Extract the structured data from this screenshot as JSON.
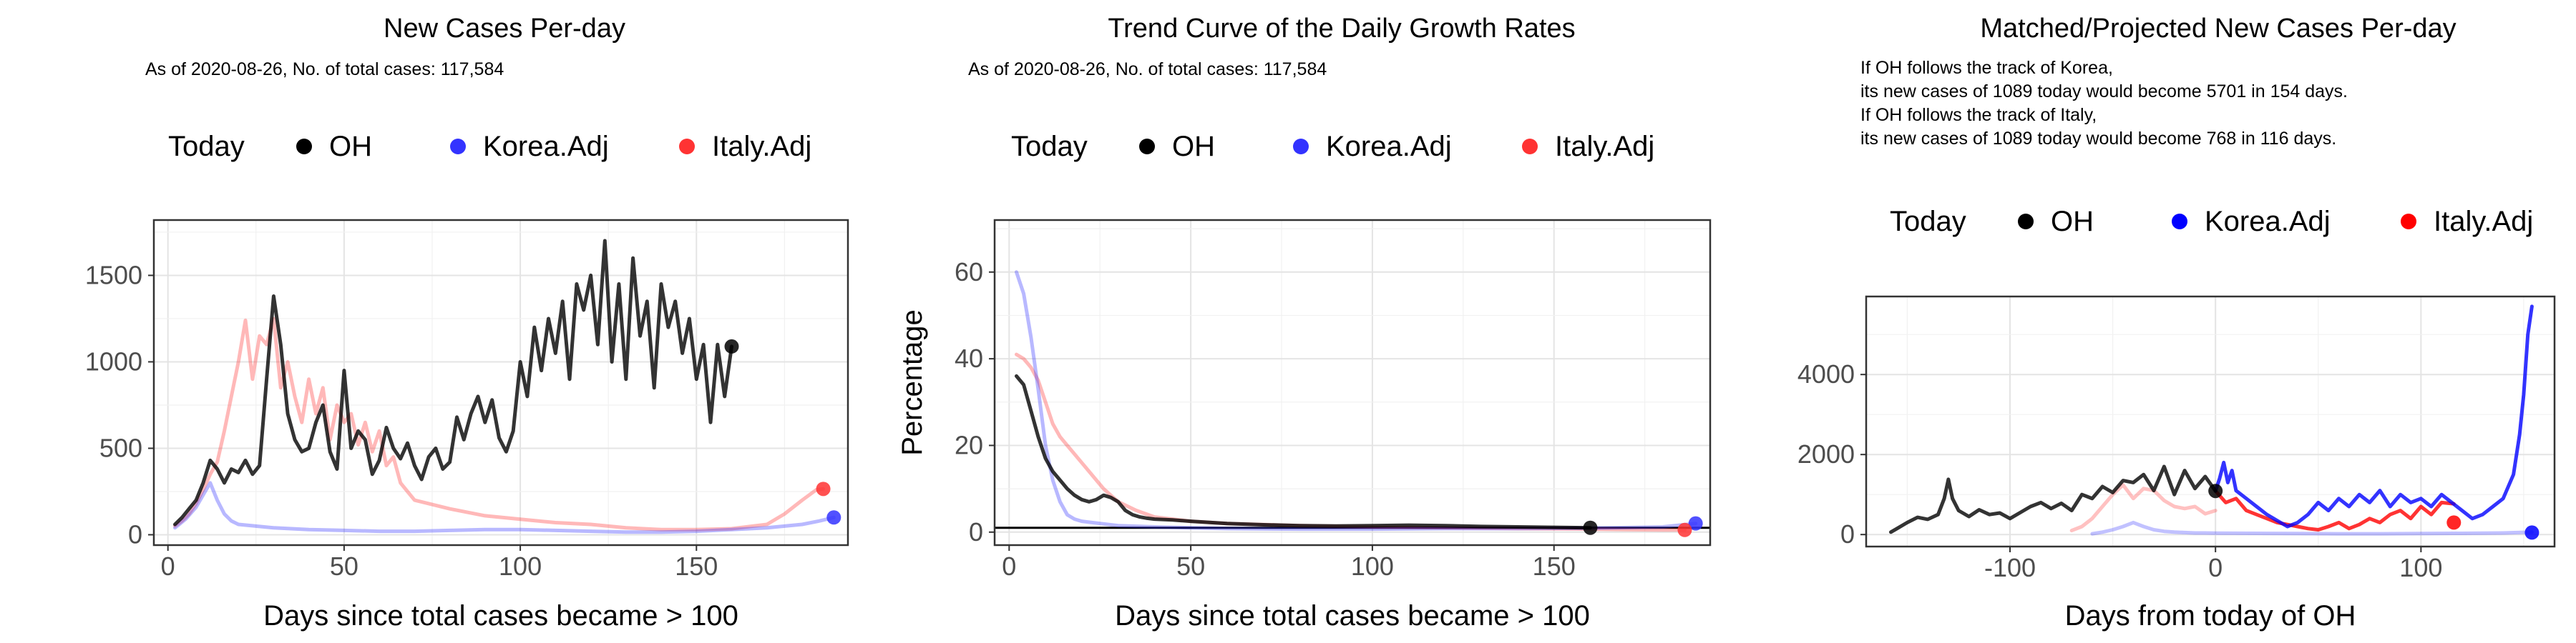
{
  "panels": [
    {
      "title": "New Cases Per-day",
      "subtitle": "As of 2020-08-26, No. of total cases: 117,584",
      "annotations": [],
      "legend": {
        "title": "Today",
        "items": [
          "OH",
          "Korea.Adj",
          "Italy.Adj"
        ],
        "colors": [
          "#000000",
          "#3333ff",
          "#ff3333"
        ]
      },
      "xlabel": "Days since total cases became > 100",
      "ylabel": ""
    },
    {
      "title": "Trend Curve of the Daily Growth Rates",
      "subtitle": "As of 2020-08-26, No. of total cases: 117,584",
      "annotations": [],
      "legend": {
        "title": "Today",
        "items": [
          "OH",
          "Korea.Adj",
          "Italy.Adj"
        ],
        "colors": [
          "#000000",
          "#3333ff",
          "#ff3333"
        ]
      },
      "xlabel": "Days since total cases became > 100",
      "ylabel": "Percentage"
    },
    {
      "title": "Matched/Projected New Cases Per-day",
      "subtitle": "",
      "annotations": [
        "If OH follows the track of Korea,",
        "its new cases of 1089 today would become 5701 in 154 days.",
        "If OH follows the track of Italy,",
        "its new cases of 1089 today would become 768 in 116 days."
      ],
      "legend": {
        "title": "Today",
        "items": [
          "OH",
          "Korea.Adj",
          "Italy.Adj"
        ],
        "colors": [
          "#000000",
          "#0000ff",
          "#ff0000"
        ]
      },
      "xlabel": "Days from today of OH",
      "ylabel": ""
    }
  ],
  "chart_data": [
    {
      "type": "line",
      "title": "New Cases Per-day",
      "xlabel": "Days since total cases became > 100",
      "ylabel": "",
      "xlim": [
        -4,
        193
      ],
      "ylim": [
        -60,
        1820
      ],
      "xticks": [
        0,
        50,
        100,
        150
      ],
      "yticks": [
        0,
        500,
        1000,
        1500
      ],
      "grid": true,
      "legend_position": "top",
      "series": [
        {
          "name": "OH",
          "color": "#000000",
          "alpha": 0.8,
          "x": [
            2,
            4,
            6,
            8,
            10,
            12,
            14,
            16,
            18,
            20,
            22,
            24,
            26,
            28,
            30,
            32,
            34,
            36,
            38,
            40,
            42,
            44,
            46,
            48,
            50,
            52,
            54,
            56,
            58,
            60,
            62,
            64,
            66,
            68,
            70,
            72,
            74,
            76,
            78,
            80,
            82,
            84,
            86,
            88,
            90,
            92,
            94,
            96,
            98,
            100,
            102,
            104,
            106,
            108,
            110,
            112,
            114,
            116,
            118,
            120,
            122,
            124,
            126,
            128,
            130,
            132,
            134,
            136,
            138,
            140,
            142,
            144,
            146,
            148,
            150,
            152,
            154,
            156,
            158,
            160
          ],
          "y": [
            60,
            100,
            150,
            200,
            300,
            430,
            380,
            300,
            380,
            360,
            430,
            350,
            400,
            900,
            1380,
            1100,
            700,
            550,
            480,
            500,
            650,
            750,
            480,
            380,
            950,
            500,
            600,
            550,
            350,
            430,
            620,
            500,
            440,
            530,
            400,
            320,
            450,
            500,
            380,
            420,
            680,
            550,
            700,
            800,
            650,
            780,
            560,
            480,
            600,
            1000,
            800,
            1200,
            950,
            1250,
            1050,
            1350,
            900,
            1450,
            1300,
            1500,
            1100,
            1700,
            1000,
            1450,
            900,
            1600,
            1150,
            1350,
            850,
            1450,
            1200,
            1350,
            1050,
            1250,
            900,
            1100,
            650,
            1100,
            800,
            1089
          ]
        },
        {
          "name": "Korea.Adj",
          "color": "#3333ff",
          "alpha": 0.35,
          "x": [
            2,
            5,
            8,
            10,
            12,
            14,
            16,
            18,
            20,
            25,
            30,
            40,
            50,
            60,
            70,
            80,
            90,
            100,
            110,
            120,
            130,
            140,
            150,
            160,
            170,
            175,
            180,
            185,
            189
          ],
          "y": [
            40,
            90,
            160,
            230,
            300,
            200,
            120,
            80,
            60,
            50,
            40,
            30,
            25,
            20,
            20,
            25,
            30,
            30,
            25,
            20,
            15,
            15,
            20,
            30,
            40,
            50,
            60,
            80,
            100
          ]
        },
        {
          "name": "Italy.Adj",
          "color": "#ff3333",
          "alpha": 0.35,
          "x": [
            2,
            4,
            6,
            8,
            10,
            12,
            14,
            16,
            18,
            20,
            22,
            24,
            26,
            28,
            30,
            32,
            34,
            36,
            38,
            40,
            42,
            44,
            46,
            48,
            50,
            52,
            54,
            56,
            58,
            60,
            62,
            64,
            66,
            68,
            70,
            80,
            90,
            100,
            110,
            120,
            130,
            140,
            150,
            160,
            170,
            175,
            180,
            184,
            186
          ],
          "y": [
            50,
            80,
            120,
            180,
            260,
            350,
            420,
            600,
            800,
            1000,
            1240,
            900,
            1150,
            1100,
            1250,
            850,
            1000,
            800,
            650,
            900,
            700,
            850,
            550,
            750,
            650,
            700,
            520,
            650,
            480,
            600,
            400,
            450,
            300,
            250,
            200,
            150,
            110,
            90,
            70,
            60,
            40,
            30,
            30,
            35,
            60,
            120,
            200,
            260,
            265
          ]
        }
      ],
      "today_points": [
        {
          "name": "OH",
          "x": 160,
          "y": 1089,
          "color": "#000000"
        },
        {
          "name": "Korea.Adj",
          "x": 189,
          "y": 100,
          "color": "#3333ff"
        },
        {
          "name": "Italy.Adj",
          "x": 186,
          "y": 265,
          "color": "#ff3333"
        }
      ]
    },
    {
      "type": "line",
      "title": "Trend Curve of the Daily Growth Rates",
      "xlabel": "Days since total cases became > 100",
      "ylabel": "Percentage",
      "xlim": [
        -4,
        193
      ],
      "ylim": [
        -3,
        72
      ],
      "xticks": [
        0,
        50,
        100,
        150
      ],
      "yticks": [
        0,
        20,
        40,
        60
      ],
      "hline": 1,
      "grid": true,
      "legend_position": "top",
      "series": [
        {
          "name": "OH",
          "color": "#000000",
          "alpha": 0.8,
          "x": [
            2,
            4,
            6,
            8,
            10,
            12,
            14,
            16,
            18,
            20,
            22,
            24,
            26,
            28,
            30,
            32,
            34,
            36,
            38,
            40,
            45,
            50,
            60,
            70,
            80,
            90,
            100,
            110,
            120,
            130,
            140,
            150,
            160
          ],
          "y": [
            36,
            34,
            28,
            22,
            17,
            14,
            12,
            10,
            8.5,
            7.5,
            7,
            7.5,
            8.5,
            8,
            7,
            5,
            4,
            3.5,
            3.2,
            3,
            2.8,
            2.5,
            2,
            1.7,
            1.5,
            1.4,
            1.5,
            1.6,
            1.5,
            1.3,
            1.2,
            1.1,
            1
          ]
        },
        {
          "name": "Korea.Adj",
          "color": "#3333ff",
          "alpha": 0.35,
          "x": [
            2,
            4,
            6,
            8,
            10,
            12,
            14,
            16,
            18,
            20,
            25,
            30,
            40,
            50,
            60,
            80,
            100,
            120,
            140,
            160,
            180,
            189
          ],
          "y": [
            60,
            55,
            45,
            33,
            20,
            12,
            7,
            4,
            3,
            2.5,
            2,
            1.5,
            1.2,
            1,
            0.8,
            0.7,
            0.7,
            0.8,
            0.8,
            0.9,
            1.2,
            2
          ]
        },
        {
          "name": "Italy.Adj",
          "color": "#ff3333",
          "alpha": 0.35,
          "x": [
            2,
            4,
            6,
            8,
            10,
            12,
            14,
            16,
            18,
            20,
            22,
            24,
            26,
            28,
            30,
            35,
            40,
            45,
            50,
            60,
            80,
            100,
            120,
            140,
            160,
            170,
            180,
            186
          ],
          "y": [
            41,
            40,
            38,
            35,
            30,
            25,
            22,
            20,
            18,
            16,
            14,
            12,
            10,
            8.5,
            7,
            5,
            3.5,
            3,
            2.5,
            2,
            1.5,
            1.2,
            1,
            0.8,
            0.7,
            0.6,
            0.5,
            0.5
          ]
        }
      ],
      "today_points": [
        {
          "name": "OH",
          "x": 160,
          "y": 1,
          "color": "#000000"
        },
        {
          "name": "Korea.Adj",
          "x": 189,
          "y": 2,
          "color": "#3333ff"
        },
        {
          "name": "Italy.Adj",
          "x": 186,
          "y": 0.5,
          "color": "#ff3333"
        }
      ]
    },
    {
      "type": "line",
      "title": "Matched/Projected New Cases Per-day",
      "xlabel": "Days from today of OH",
      "ylabel": "",
      "xlim": [
        -170,
        165
      ],
      "ylim": [
        -300,
        5950
      ],
      "xticks": [
        -100,
        0,
        100
      ],
      "yticks": [
        0,
        2000,
        4000
      ],
      "grid": true,
      "legend_position": "top",
      "series": [
        {
          "name": "OH",
          "color": "#000000",
          "alpha": 0.8,
          "x": [
            -158,
            -155,
            -150,
            -145,
            -140,
            -135,
            -132,
            -130,
            -128,
            -125,
            -120,
            -115,
            -110,
            -105,
            -100,
            -95,
            -90,
            -85,
            -80,
            -75,
            -70,
            -65,
            -60,
            -55,
            -50,
            -45,
            -40,
            -35,
            -30,
            -25,
            -20,
            -15,
            -10,
            -5,
            0
          ],
          "y": [
            60,
            150,
            300,
            430,
            380,
            500,
            900,
            1380,
            900,
            600,
            450,
            620,
            500,
            540,
            400,
            550,
            700,
            800,
            650,
            780,
            600,
            1000,
            900,
            1200,
            1050,
            1350,
            1300,
            1500,
            1100,
            1700,
            1000,
            1600,
            1150,
            1450,
            1089
          ]
        },
        {
          "name": "Korea.Adj",
          "color": "#0000ff",
          "alpha": 0.8,
          "x": [
            0,
            2,
            4,
            6,
            8,
            10,
            15,
            20,
            25,
            30,
            35,
            40,
            45,
            50,
            55,
            60,
            65,
            70,
            75,
            80,
            85,
            90,
            95,
            100,
            105,
            110,
            115,
            120,
            125,
            130,
            135,
            140,
            145,
            148,
            150,
            152,
            154
          ],
          "y": [
            1089,
            1400,
            1800,
            1300,
            1600,
            1100,
            900,
            700,
            500,
            350,
            200,
            300,
            500,
            800,
            600,
            900,
            700,
            1000,
            800,
            1100,
            700,
            1000,
            800,
            900,
            700,
            1000,
            800,
            600,
            400,
            500,
            700,
            900,
            1500,
            2500,
            3500,
            5000,
            5701
          ]
        },
        {
          "name": "Italy.Adj",
          "color": "#ff0000",
          "alpha": 0.8,
          "x": [
            0,
            5,
            10,
            15,
            20,
            25,
            30,
            35,
            40,
            45,
            50,
            55,
            60,
            65,
            70,
            75,
            80,
            85,
            90,
            95,
            100,
            105,
            110,
            116
          ],
          "y": [
            1089,
            800,
            900,
            600,
            500,
            400,
            300,
            250,
            200,
            150,
            120,
            200,
            300,
            150,
            250,
            400,
            300,
            500,
            600,
            400,
            700,
            500,
            800,
            768
          ]
        },
        {
          "name": "Korea.Adj past",
          "color": "#3333ff",
          "alpha": 0.3,
          "x": [
            -60,
            -55,
            -50,
            -45,
            -40,
            -35,
            -30,
            -25,
            -20,
            -15,
            -10,
            -5,
            0,
            20,
            40,
            60,
            80,
            100,
            120,
            140,
            154
          ],
          "y": [
            20,
            60,
            120,
            200,
            300,
            200,
            120,
            80,
            60,
            50,
            40,
            40,
            35,
            30,
            25,
            20,
            20,
            25,
            30,
            40,
            60
          ]
        },
        {
          "name": "Italy.Adj past",
          "color": "#ff3333",
          "alpha": 0.3,
          "x": [
            -70,
            -65,
            -60,
            -55,
            -50,
            -45,
            -40,
            -35,
            -30,
            -25,
            -20,
            -15,
            -10,
            -5,
            0
          ],
          "y": [
            100,
            200,
            400,
            700,
            1000,
            1240,
            900,
            1150,
            1100,
            850,
            700,
            650,
            700,
            520,
            600
          ]
        }
      ],
      "today_points": [
        {
          "name": "Korea.Adj",
          "x": 154,
          "y": 50,
          "color": "#0000ff"
        },
        {
          "name": "Italy.Adj",
          "x": 116,
          "y": 300,
          "color": "#ff0000"
        },
        {
          "name": "OH",
          "x": 0,
          "y": 1089,
          "color": "#000000"
        }
      ]
    }
  ]
}
